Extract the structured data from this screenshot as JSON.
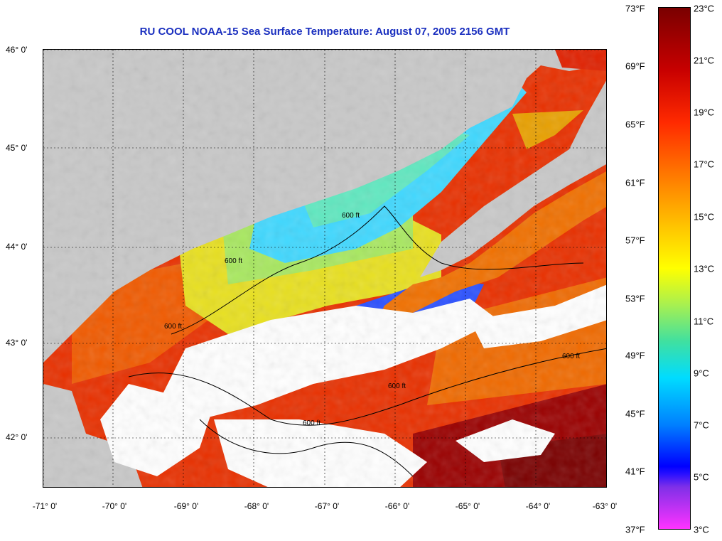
{
  "title": "RU COOL  NOAA-15  Sea Surface Temperature:  August 07, 2005 2156 GMT",
  "map": {
    "lon_labels": [
      "-71° 0'",
      "-70° 0'",
      "-69° 0'",
      "-68° 0'",
      "-67° 0'",
      "-66° 0'",
      "-65° 0'",
      "-64° 0'",
      "-63° 0'"
    ],
    "lat_labels": [
      "46° 0'",
      "45° 0'",
      "44° 0'",
      "43° 0'",
      "42° 0'"
    ],
    "contour_label": "600 ft",
    "colors": {
      "land": "#c8c8c8",
      "cloud": "#ffffff",
      "warm": "#e82800",
      "cool": "#40d8ff"
    }
  },
  "colorbar": {
    "fahrenheit_labels": [
      "73°F",
      "69°F",
      "65°F",
      "61°F",
      "57°F",
      "53°F",
      "49°F",
      "45°F",
      "41°F",
      "37°F"
    ],
    "celsius_labels": [
      "23°C",
      "21°C",
      "19°C",
      "17°C",
      "15°C",
      "13°C",
      "11°C",
      "9°C",
      "7°C",
      "5°C",
      "3°C"
    ]
  }
}
